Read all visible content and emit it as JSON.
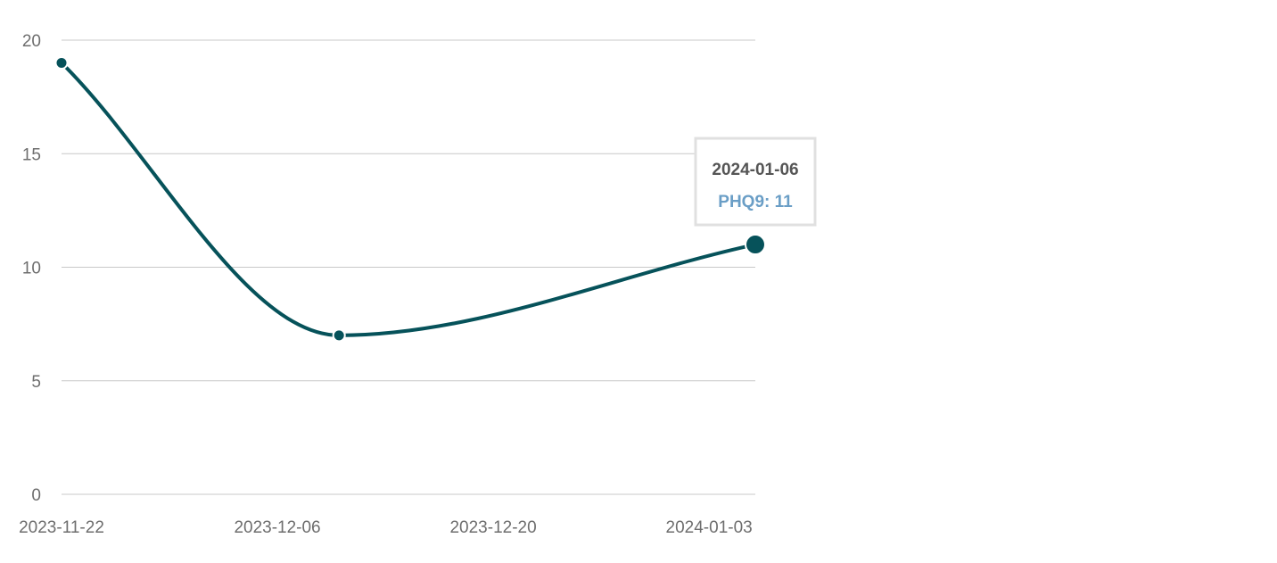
{
  "chart_data": {
    "type": "line",
    "x": [
      "2023-11-22",
      "2023-12-10",
      "2024-01-06"
    ],
    "series": [
      {
        "name": "PHQ9",
        "values": [
          19,
          7,
          11
        ],
        "color": "#06525a"
      }
    ],
    "x_ticks": [
      "2023-11-22",
      "2023-12-06",
      "2023-12-20",
      "2024-01-03"
    ],
    "y_ticks": [
      0,
      5,
      10,
      15,
      20
    ],
    "xlim": [
      "2023-11-22",
      "2024-01-06"
    ],
    "ylim": [
      0,
      20
    ],
    "grid": true,
    "smooth": true,
    "tooltip": {
      "title": "2024-01-06",
      "label": "PHQ9: 11",
      "title_color": "#555555",
      "label_color": "#6a9ec6",
      "highlighted_point": 2
    },
    "colors": {
      "line": "#06525a",
      "grid": "#c8c8c8",
      "tick_text": "#6e6e6e"
    }
  }
}
